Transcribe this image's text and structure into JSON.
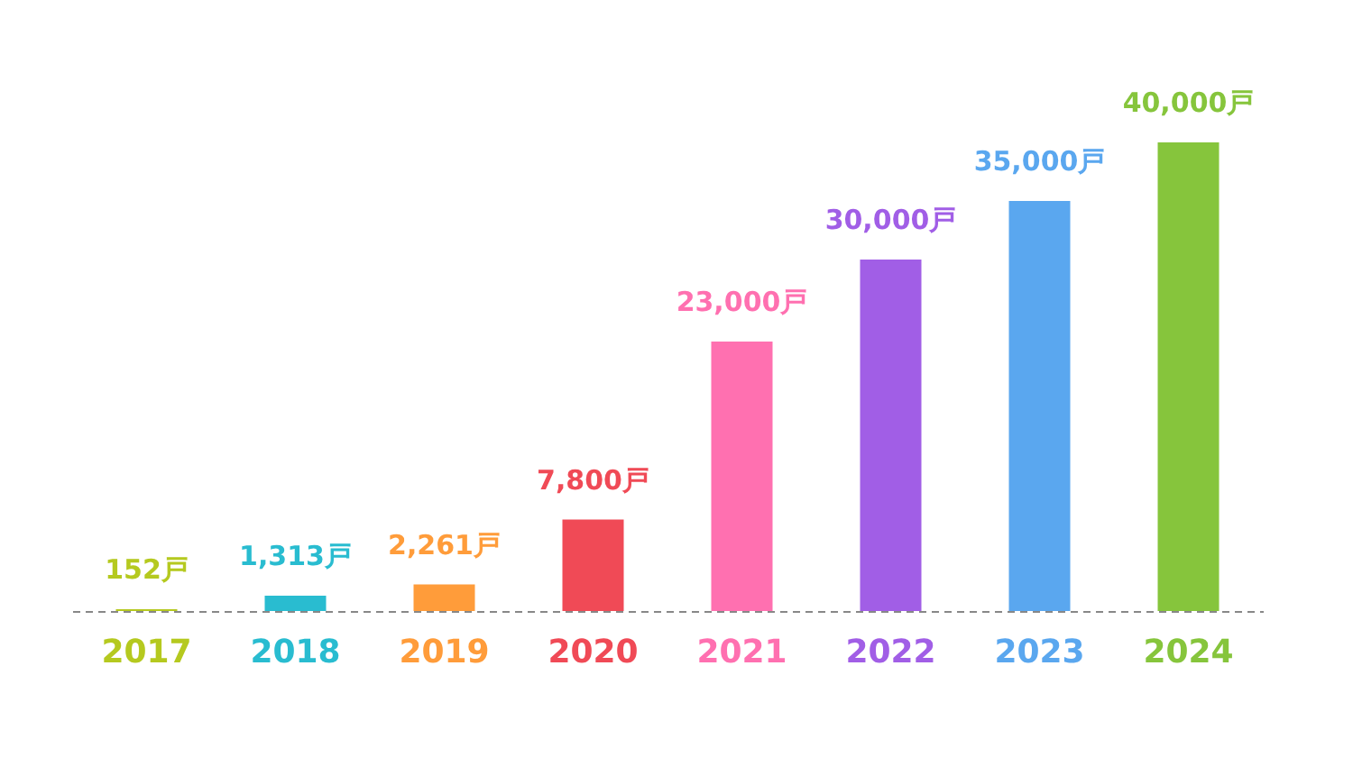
{
  "chart_data": {
    "type": "bar",
    "categories": [
      "2017",
      "2018",
      "2019",
      "2020",
      "2021",
      "2022",
      "2023",
      "2024"
    ],
    "values": [
      152,
      1313,
      2261,
      7800,
      23000,
      30000,
      35000,
      40000
    ],
    "colors": [
      "#b5c91f",
      "#29bcd0",
      "#ff9c3a",
      "#f04a56",
      "#ff70b0",
      "#a15ee6",
      "#5aa7ef",
      "#86c53c"
    ],
    "value_labels": [
      "152戸",
      "1,313戸",
      "2,261戸",
      "7,800戸",
      "23,000戸",
      "30,000戸",
      "35,000戸",
      "40,000戸"
    ],
    "tick_labels": "x"
  }
}
